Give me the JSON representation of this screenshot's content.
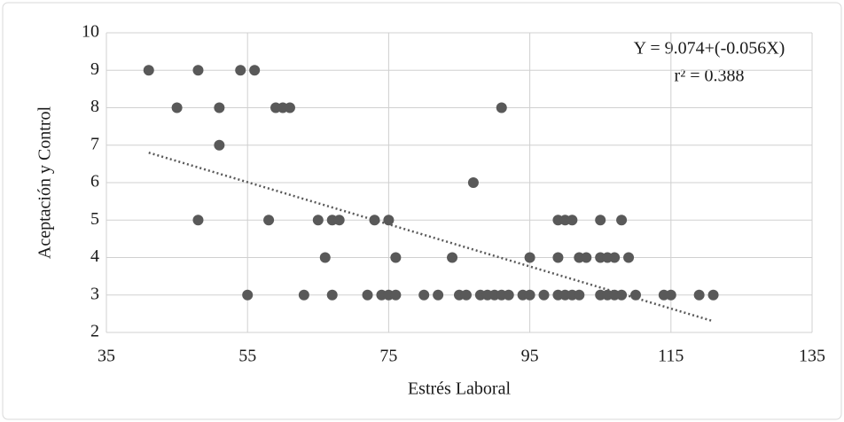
{
  "chart_data": {
    "type": "scatter",
    "xlabel": "Estrés Laboral",
    "ylabel": "Aceptación y Control",
    "annotations": [
      "Y = 9.074+(-0.056X)",
      "r² = 0.388"
    ],
    "color": "#595959",
    "grid": true,
    "xlim": [
      35,
      135
    ],
    "xticks": [
      35,
      55,
      75,
      95,
      115,
      135
    ],
    "ylim": [
      2,
      10
    ],
    "yticks": [
      2,
      3,
      4,
      5,
      6,
      7,
      8,
      9,
      10
    ],
    "x": [
      41,
      48,
      54,
      56,
      45,
      51,
      59,
      60,
      61,
      91,
      51,
      87,
      48,
      58,
      65,
      67,
      68,
      73,
      75,
      99,
      100,
      101,
      105,
      108,
      66,
      76,
      84,
      95,
      99,
      102,
      103,
      105,
      106,
      107,
      109,
      55,
      63,
      67,
      72,
      74,
      75,
      76,
      80,
      82,
      85,
      86,
      88,
      89,
      90,
      91,
      92,
      94,
      95,
      97,
      99,
      100,
      101,
      102,
      105,
      106,
      107,
      108,
      110,
      114,
      115,
      119,
      121
    ],
    "values": [
      9,
      9,
      9,
      9,
      8,
      8,
      8,
      8,
      8,
      8,
      7,
      6,
      5,
      5,
      5,
      5,
      5,
      5,
      5,
      5,
      5,
      5,
      5,
      5,
      4,
      4,
      4,
      4,
      4,
      4,
      4,
      4,
      4,
      4,
      4,
      3,
      3,
      3,
      3,
      3,
      3,
      3,
      3,
      3,
      3,
      3,
      3,
      3,
      3,
      3,
      3,
      3,
      3,
      3,
      3,
      3,
      3,
      3,
      3,
      3,
      3,
      3,
      3,
      3,
      3,
      3,
      3
    ],
    "trendline": {
      "x": [
        41,
        121
      ],
      "values": [
        6.8,
        2.3
      ],
      "color": "#595959"
    }
  }
}
